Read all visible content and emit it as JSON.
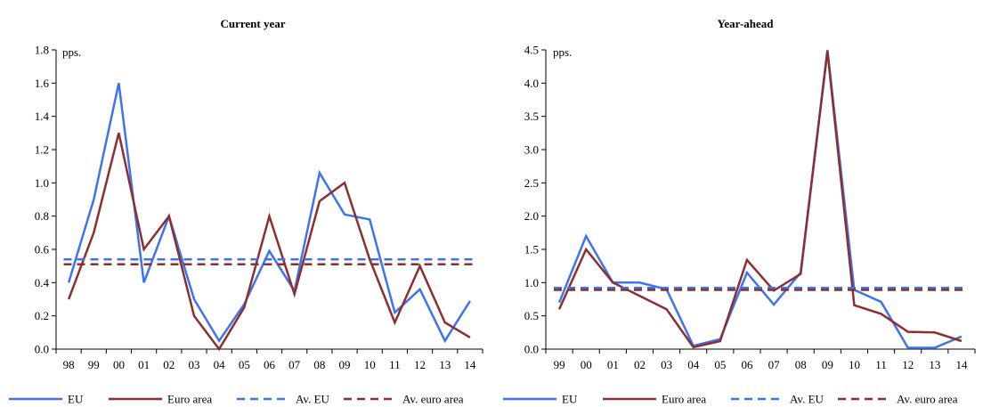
{
  "colors": {
    "eu": "#3d73f0",
    "euro_area": "#8b2f2f",
    "axis": "#000000"
  },
  "chart_data": [
    {
      "type": "line",
      "title": "Current year",
      "unit_label": "pps.",
      "x": [
        "98",
        "99",
        "00",
        "01",
        "02",
        "03",
        "04",
        "05",
        "06",
        "07",
        "08",
        "09",
        "10",
        "11",
        "12",
        "13",
        "14"
      ],
      "ylim": [
        0,
        1.8
      ],
      "yticks": [
        "0.0",
        "0.2",
        "0.4",
        "0.6",
        "0.8",
        "1.0",
        "1.2",
        "1.4",
        "1.6",
        "1.8"
      ],
      "grid": false,
      "legend_position": "bottom",
      "series": [
        {
          "name": "EU",
          "style": "solid",
          "values": [
            0.4,
            0.9,
            1.6,
            0.4,
            0.8,
            0.3,
            0.05,
            0.27,
            0.59,
            0.35,
            1.06,
            0.81,
            0.78,
            0.22,
            0.36,
            0.05,
            0.29
          ]
        },
        {
          "name": "Euro area",
          "style": "solid",
          "values": [
            0.3,
            0.7,
            1.3,
            0.6,
            0.8,
            0.2,
            0.0,
            0.25,
            0.8,
            0.33,
            0.89,
            1.0,
            0.54,
            0.16,
            0.5,
            0.16,
            0.07
          ]
        },
        {
          "name": "Av. EU",
          "style": "dashed",
          "values": [
            0.54,
            0.54,
            0.54,
            0.54,
            0.54,
            0.54,
            0.54,
            0.54,
            0.54,
            0.54,
            0.54,
            0.54,
            0.54,
            0.54,
            0.54,
            0.54,
            0.54
          ]
        },
        {
          "name": "Av. euro area",
          "style": "dashed",
          "values": [
            0.51,
            0.51,
            0.51,
            0.51,
            0.51,
            0.51,
            0.51,
            0.51,
            0.51,
            0.51,
            0.51,
            0.51,
            0.51,
            0.51,
            0.51,
            0.51,
            0.51
          ]
        }
      ]
    },
    {
      "type": "line",
      "title": "Year-ahead",
      "unit_label": "pps.",
      "x": [
        "99",
        "00",
        "01",
        "02",
        "03",
        "04",
        "05",
        "06",
        "07",
        "08",
        "09",
        "10",
        "11",
        "12",
        "13",
        "14"
      ],
      "ylim": [
        0,
        4.5
      ],
      "yticks": [
        "0.0",
        "0.5",
        "1.0",
        "1.5",
        "2.0",
        "2.5",
        "3.0",
        "3.5",
        "4.0",
        "4.5"
      ],
      "grid": false,
      "legend_position": "bottom",
      "series": [
        {
          "name": "EU",
          "style": "solid",
          "values": [
            0.7,
            1.7,
            1.0,
            1.0,
            0.9,
            0.05,
            0.15,
            1.15,
            0.67,
            1.15,
            4.5,
            0.89,
            0.71,
            0.02,
            0.02,
            0.19
          ]
        },
        {
          "name": "Euro area",
          "style": "solid",
          "values": [
            0.6,
            1.5,
            1.0,
            0.8,
            0.6,
            0.03,
            0.12,
            1.34,
            0.88,
            1.13,
            4.48,
            0.66,
            0.53,
            0.26,
            0.25,
            0.12
          ]
        },
        {
          "name": "Av. EU",
          "style": "dashed",
          "values": [
            0.92,
            0.92,
            0.92,
            0.92,
            0.92,
            0.92,
            0.92,
            0.92,
            0.92,
            0.92,
            0.92,
            0.92,
            0.92,
            0.92,
            0.92,
            0.92
          ]
        },
        {
          "name": "Av. euro area",
          "style": "dashed",
          "values": [
            0.89,
            0.89,
            0.89,
            0.89,
            0.89,
            0.89,
            0.89,
            0.89,
            0.89,
            0.89,
            0.89,
            0.89,
            0.89,
            0.89,
            0.89,
            0.89
          ]
        }
      ]
    }
  ]
}
